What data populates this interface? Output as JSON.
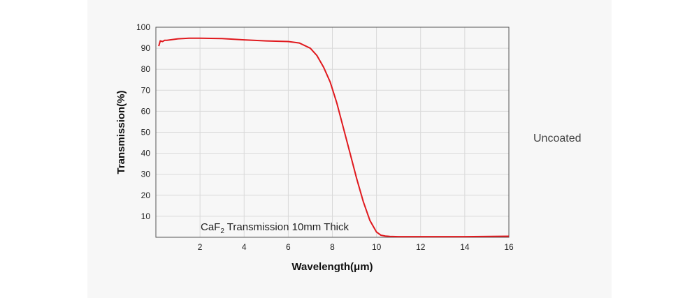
{
  "side_label": "Uncoated",
  "chart_data": {
    "type": "line",
    "title": "",
    "annotation": {
      "prefix": "CaF",
      "subscript": "2",
      "suffix": " Transmission 10mm Thick"
    },
    "xlabel": "Wavelength(μm)",
    "ylabel": "Transmission(%)",
    "xlim": [
      0,
      16
    ],
    "ylim": [
      0,
      100
    ],
    "x_ticks": [
      2,
      4,
      6,
      8,
      10,
      12,
      14,
      16
    ],
    "y_ticks": [
      10,
      20,
      30,
      40,
      50,
      60,
      70,
      80,
      90,
      100
    ],
    "grid": true,
    "colors": {
      "line": "#e0191e",
      "grid": "#d9d9d9",
      "frame": "#555555"
    },
    "series": [
      {
        "x": [
          0.13,
          0.2,
          0.3,
          0.4,
          0.5,
          1.0,
          1.5,
          2.0,
          3.0,
          4.0,
          5.0,
          6.0,
          6.5,
          7.0,
          7.3,
          7.6,
          7.9,
          8.2,
          8.5,
          8.8,
          9.1,
          9.4,
          9.7,
          10.0,
          10.2,
          10.4,
          10.6,
          11.0,
          12.0,
          14.0,
          16.0
        ],
        "y": [
          91,
          93.5,
          93.2,
          93.8,
          93.8,
          94.5,
          94.8,
          94.8,
          94.6,
          94.0,
          93.5,
          93.2,
          92.5,
          90.0,
          86.5,
          81.0,
          74.0,
          64.0,
          52.0,
          40.0,
          28.0,
          17.0,
          8.0,
          2.5,
          1.0,
          0.6,
          0.4,
          0.3,
          0.3,
          0.3,
          0.5
        ]
      }
    ]
  }
}
